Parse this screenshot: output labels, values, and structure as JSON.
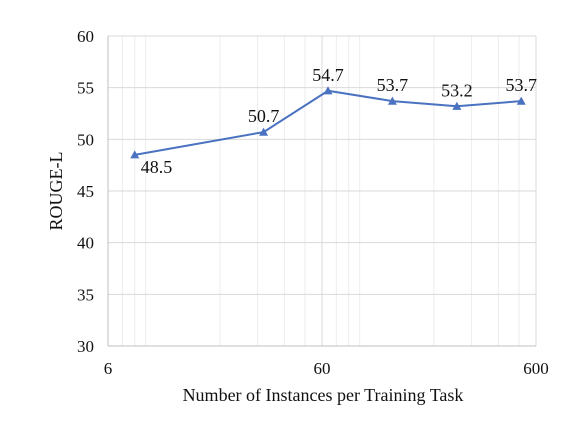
{
  "chart_data": {
    "type": "line",
    "title": "",
    "xlabel": "Number of Instances per Training Task",
    "ylabel": "ROUGE-L",
    "xscale": "log",
    "xlim": [
      6,
      600
    ],
    "ylim": [
      30,
      60
    ],
    "xticks": [
      6,
      60,
      600
    ],
    "xtick_labels": [
      "6",
      "60",
      "600"
    ],
    "yticks": [
      30,
      35,
      40,
      45,
      50,
      55,
      60
    ],
    "ytick_labels": [
      "30",
      "35",
      "40",
      "45",
      "50",
      "55",
      "60"
    ],
    "grid": true,
    "legend": "none",
    "series": [
      {
        "color": "#4a72c0",
        "marker": "triangle",
        "x": [
          8,
          32,
          64,
          128,
          256,
          512
        ],
        "values": [
          48.5,
          50.7,
          54.7,
          53.7,
          53.2,
          53.7
        ],
        "labels": [
          "48.5",
          "50.7",
          "54.7",
          "53.7",
          "53.2",
          "53.7"
        ]
      }
    ]
  }
}
